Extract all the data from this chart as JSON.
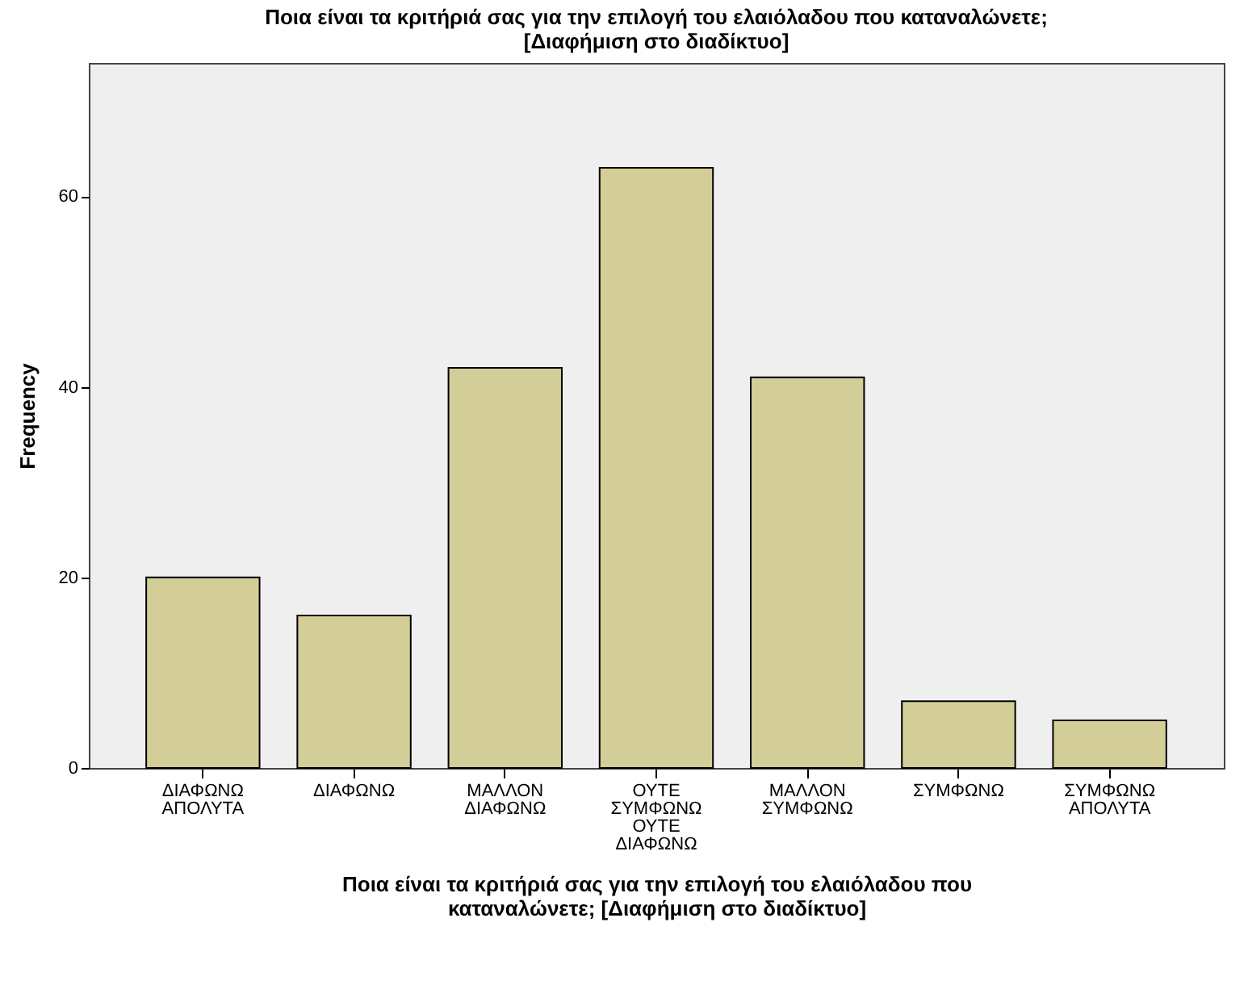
{
  "chart_data": {
    "type": "bar",
    "title": "Ποια είναι τα κριτήριά σας για την επιλογή του ελαιόλαδου που καταναλώνετε;\n[Διαφήμιση στο διαδίκτυο]",
    "xlabel": "Ποια είναι τα κριτήριά σας για την επιλογή του ελαιόλαδου που\nκαταναλώνετε;  [Διαφήμιση στο διαδίκτυο]",
    "ylabel": "Frequency",
    "categories": [
      "ΔΙΑΦΩΝΩ ΑΠΟΛΥΤΑ",
      "ΔΙΑΦΩΝΩ",
      "ΜΑΛΛΟΝ ΔΙΑΦΩΝΩ",
      "ΟΥΤΕ ΣΥΜΦΩΝΩ ΟΥΤΕ ΔΙΑΦΩΝΩ",
      "ΜΑΛΛΟΝ ΣΥΜΦΩΝΩ",
      "ΣΥΜΦΩΝΩ",
      "ΣΥΜΦΩΝΩ ΑΠΟΛΥΤΑ"
    ],
    "values": [
      20,
      16,
      42,
      63,
      41,
      7,
      5
    ],
    "color": "#d3ce97",
    "ylim": [
      0,
      74
    ],
    "yticks": [
      0,
      20,
      40,
      60
    ],
    "grid": false
  }
}
